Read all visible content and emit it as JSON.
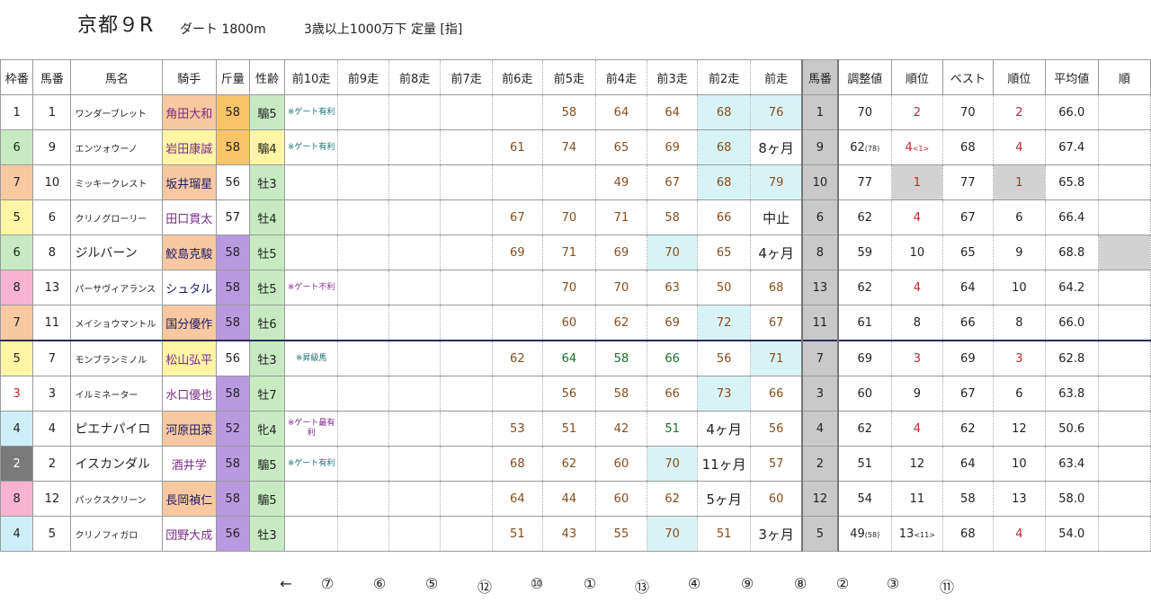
{
  "header": {
    "race": "京都９R",
    "distance": "ダート 1800m",
    "condition": "3歳以上1000万下 定量 [指]"
  },
  "columns": [
    "枠番",
    "馬番",
    "馬名",
    "騎手",
    "斤量",
    "性齢",
    "前10走",
    "前9走",
    "前8走",
    "前7走",
    "前6走",
    "前5走",
    "前4走",
    "前3走",
    "前2走",
    "前走",
    "馬番",
    "調整値",
    "順位",
    "ベスト",
    "順位",
    "平均値",
    "順"
  ],
  "rows": [
    {
      "waku": "1",
      "uma": "1",
      "name": "ワンダーブレット",
      "jockey": "角田大和",
      "kin": "58",
      "sex": "騸5",
      "note": "※ゲート有利",
      "p6": "",
      "p5": "58",
      "p4": "64",
      "p3": "64",
      "p2": "68",
      "p1": "76",
      "uma2": "1",
      "adj": "70",
      "adj_sub": "",
      "rank": "2",
      "rank_sub": "",
      "best": "70",
      "rank2": "2",
      "avg": "66.0"
    },
    {
      "waku": "6",
      "uma": "9",
      "name": "エンツォウーノ",
      "jockey": "岩田康誠",
      "kin": "58",
      "sex": "騸4",
      "note": "※ゲート有利",
      "p6": "61",
      "p5": "74",
      "p4": "65",
      "p3": "69",
      "p2": "68",
      "p1": "8ヶ月",
      "uma2": "9",
      "adj": "62",
      "adj_sub": "(78)",
      "rank": "4",
      "rank_sub": "<1>",
      "best": "68",
      "rank2": "4",
      "avg": "67.4"
    },
    {
      "waku": "7",
      "uma": "10",
      "name": "ミッキークレスト",
      "jockey": "坂井瑠星",
      "kin": "56",
      "sex": "牡3",
      "note": "",
      "p6": "",
      "p5": "",
      "p4": "49",
      "p3": "67",
      "p2": "68",
      "p1": "79",
      "uma2": "10",
      "adj": "77",
      "adj_sub": "",
      "rank": "1",
      "rank_sub": "",
      "best": "77",
      "rank2": "1",
      "avg": "65.8"
    },
    {
      "waku": "5",
      "uma": "6",
      "name": "クリノグローリー",
      "jockey": "田口貫太",
      "kin": "57",
      "sex": "牡4",
      "note": "",
      "p6": "67",
      "p5": "70",
      "p4": "71",
      "p3": "58",
      "p2": "66",
      "p1": "中止",
      "uma2": "6",
      "adj": "62",
      "adj_sub": "",
      "rank": "4",
      "rank_sub": "",
      "best": "67",
      "rank2": "6",
      "avg": "66.4"
    },
    {
      "waku": "6",
      "uma": "8",
      "name": "ジルバーン",
      "jockey": "鮫島克駿",
      "kin": "58",
      "sex": "牡5",
      "note": "",
      "p6": "69",
      "p5": "71",
      "p4": "69",
      "p3": "70",
      "p2": "65",
      "p1": "4ヶ月",
      "uma2": "8",
      "adj": "59",
      "adj_sub": "",
      "rank": "10",
      "rank_sub": "",
      "best": "65",
      "rank2": "9",
      "avg": "68.8"
    },
    {
      "waku": "8",
      "uma": "13",
      "name": "パーサヴィアランス",
      "jockey": "シュタル",
      "kin": "58",
      "sex": "牡5",
      "note": "※ゲート不利",
      "p6": "",
      "p5": "70",
      "p4": "70",
      "p3": "63",
      "p2": "50",
      "p1": "68",
      "uma2": "13",
      "adj": "62",
      "adj_sub": "",
      "rank": "4",
      "rank_sub": "",
      "best": "64",
      "rank2": "10",
      "avg": "64.2"
    },
    {
      "waku": "7",
      "uma": "11",
      "name": "メイショウマントル",
      "jockey": "国分優作",
      "kin": "58",
      "sex": "牡6",
      "note": "",
      "p6": "",
      "p5": "60",
      "p4": "62",
      "p3": "69",
      "p2": "72",
      "p1": "67",
      "uma2": "11",
      "adj": "61",
      "adj_sub": "",
      "rank": "8",
      "rank_sub": "",
      "best": "66",
      "rank2": "8",
      "avg": "66.0"
    },
    {
      "waku": "5",
      "uma": "7",
      "name": "モンブランミノル",
      "jockey": "松山弘平",
      "kin": "56",
      "sex": "牡3",
      "note": "※昇級馬",
      "p6": "62",
      "p5": "64",
      "p4": "58",
      "p3": "66",
      "p2": "56",
      "p1": "71",
      "uma2": "7",
      "adj": "69",
      "adj_sub": "",
      "rank": "3",
      "rank_sub": "",
      "best": "69",
      "rank2": "3",
      "avg": "62.8"
    },
    {
      "waku": "3",
      "uma": "3",
      "name": "イルミネーター",
      "jockey": "水口優也",
      "kin": "58",
      "sex": "牡7",
      "note": "",
      "p6": "",
      "p5": "56",
      "p4": "58",
      "p3": "66",
      "p2": "73",
      "p1": "66",
      "uma2": "3",
      "adj": "60",
      "adj_sub": "",
      "rank": "9",
      "rank_sub": "",
      "best": "67",
      "rank2": "6",
      "avg": "63.8"
    },
    {
      "waku": "4",
      "uma": "4",
      "name": "ピエナパイロ",
      "jockey": "河原田菜",
      "kin": "52",
      "sex": "牝4",
      "note": "※ゲート最有利",
      "p6": "53",
      "p5": "51",
      "p4": "42",
      "p3": "51",
      "p2": "4ヶ月",
      "p1": "56",
      "uma2": "4",
      "adj": "62",
      "adj_sub": "",
      "rank": "4",
      "rank_sub": "",
      "best": "62",
      "rank2": "12",
      "avg": "50.6"
    },
    {
      "waku": "2",
      "uma": "2",
      "name": "イスカンダル",
      "jockey": "酒井学",
      "kin": "58",
      "sex": "騸5",
      "note": "※ゲート有利",
      "p6": "68",
      "p5": "62",
      "p4": "60",
      "p3": "70",
      "p2": "11ヶ月",
      "p1": "57",
      "uma2": "2",
      "adj": "51",
      "adj_sub": "",
      "rank": "12",
      "rank_sub": "",
      "best": "64",
      "rank2": "10",
      "avg": "63.4"
    },
    {
      "waku": "8",
      "uma": "12",
      "name": "パックスクリーン",
      "jockey": "長岡禎仁",
      "kin": "58",
      "sex": "騸5",
      "note": "",
      "p6": "64",
      "p5": "44",
      "p4": "60",
      "p3": "62",
      "p2": "5ヶ月",
      "p1": "60",
      "uma2": "12",
      "adj": "54",
      "adj_sub": "",
      "rank": "11",
      "rank_sub": "",
      "best": "58",
      "rank2": "13",
      "avg": "58.0"
    },
    {
      "waku": "4",
      "uma": "5",
      "name": "クリノフィガロ",
      "jockey": "団野大成",
      "kin": "56",
      "sex": "牡3",
      "note": "",
      "p6": "51",
      "p5": "43",
      "p4": "55",
      "p3": "70",
      "p2": "51",
      "p1": "3ヶ月",
      "uma2": "5",
      "adj": "49",
      "adj_sub": "(58)",
      "rank": "13",
      "rank_sub": "<11>",
      "best": "68",
      "rank2": "4",
      "avg": "54.0"
    }
  ],
  "bottom": [
    "←",
    "⑦",
    "⑥",
    "⑤",
    "⑫",
    "⑩",
    "①",
    "⑬",
    "④",
    "⑨",
    "⑧",
    "②",
    "③",
    "⑪"
  ]
}
